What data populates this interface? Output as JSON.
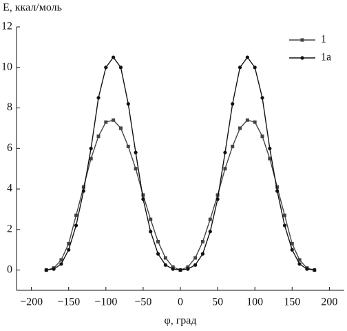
{
  "chart_data": {
    "type": "line",
    "y_label": "E, ккал/моль",
    "x_label": "φ, град",
    "x": [
      -180,
      -170,
      -160,
      -150,
      -140,
      -130,
      -120,
      -110,
      -100,
      -90,
      -80,
      -70,
      -60,
      -50,
      -40,
      -30,
      -20,
      -10,
      0,
      10,
      20,
      30,
      40,
      50,
      60,
      70,
      80,
      90,
      100,
      110,
      120,
      130,
      140,
      150,
      160,
      170,
      180
    ],
    "series": [
      {
        "name": "1",
        "color": "#444444",
        "marker": "square",
        "values": [
          0,
          0.1,
          0.5,
          1.3,
          2.7,
          4.1,
          5.5,
          6.6,
          7.3,
          7.4,
          7.0,
          6.1,
          5.0,
          3.7,
          2.5,
          1.4,
          0.6,
          0.15,
          0,
          0.15,
          0.6,
          1.4,
          2.5,
          3.7,
          5.0,
          6.1,
          7.0,
          7.4,
          7.3,
          6.6,
          5.5,
          4.1,
          2.7,
          1.3,
          0.5,
          0.1,
          0
        ]
      },
      {
        "name": "1a",
        "color": "#111111",
        "marker": "circle",
        "values": [
          0,
          0.05,
          0.3,
          1.0,
          2.2,
          3.9,
          6.0,
          8.5,
          10.0,
          10.5,
          10.0,
          8.2,
          5.8,
          3.5,
          1.9,
          0.8,
          0.25,
          0.05,
          0,
          0.05,
          0.25,
          0.8,
          1.9,
          3.5,
          5.8,
          8.2,
          10.0,
          10.5,
          10.0,
          8.5,
          6.0,
          3.9,
          2.2,
          1.0,
          0.3,
          0.05,
          0
        ]
      }
    ],
    "xlim": [
      -220,
      220
    ],
    "ylim": [
      -1,
      12
    ],
    "xticks": [
      {
        "value": -200,
        "label": "−200"
      },
      {
        "value": -150,
        "label": "−150"
      },
      {
        "value": -100,
        "label": "−100"
      },
      {
        "value": -50,
        "label": "−50"
      },
      0,
      50,
      100,
      150,
      200
    ],
    "yticks": [
      0,
      2,
      4,
      6,
      8,
      10,
      12
    ],
    "legend": "upper right"
  }
}
